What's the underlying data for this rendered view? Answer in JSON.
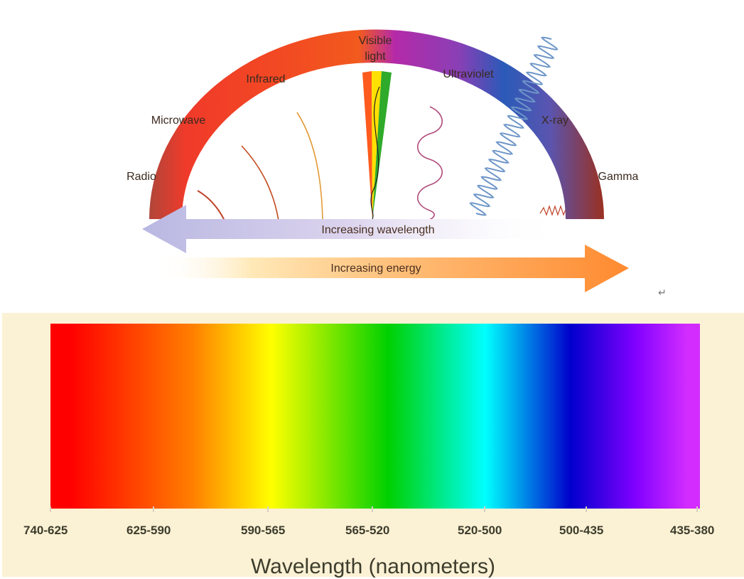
{
  "em_spectrum": {
    "labels": {
      "radio": "Radio",
      "microwave": "Microwave",
      "infrared": "Infrared",
      "visible_line1": "Visible",
      "visible_line2": "light",
      "ultraviolet": "Ultraviolet",
      "xray": "X-ray",
      "gamma": "Gamma"
    },
    "arrows": {
      "wavelength": "Increasing wavelength",
      "energy": "Increasing energy"
    }
  },
  "visible_spectrum": {
    "tick_labels": [
      "740-625",
      "625-590",
      "590-565",
      "565-520",
      "520-500",
      "500-435",
      "435-380"
    ],
    "axis_title": "Wavelength (nanometers)",
    "colors": [
      "#ff0000",
      "#ff8000",
      "#ffff00",
      "#00d000",
      "#00ffff",
      "#0000cc",
      "#8000ff",
      "#d22cff"
    ]
  },
  "misc": {
    "return_symbol": "↵"
  }
}
